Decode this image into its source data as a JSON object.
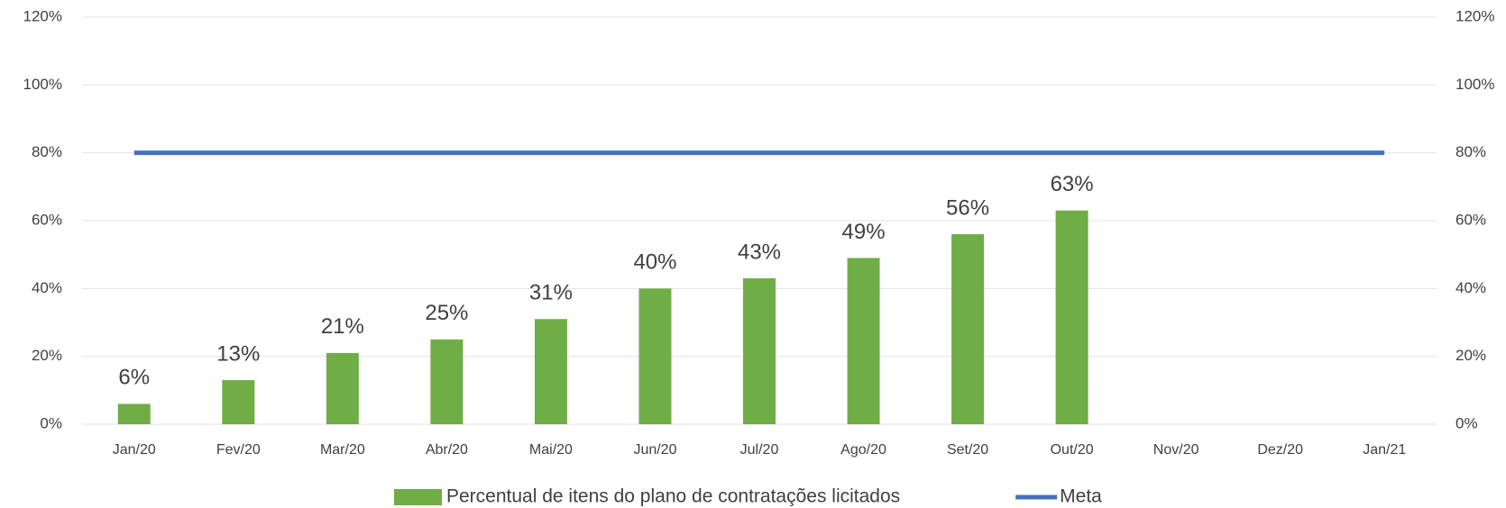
{
  "chart_data": {
    "type": "bar",
    "categories": [
      "Jan/20",
      "Fev/20",
      "Mar/20",
      "Abr/20",
      "Mai/20",
      "Jun/20",
      "Jul/20",
      "Ago/20",
      "Set/20",
      "Out/20",
      "Nov/20",
      "Dez/20",
      "Jan/21"
    ],
    "series": [
      {
        "name": "Percentual de itens do plano de contratações licitados",
        "type": "bar",
        "color": "#70ad47",
        "values": [
          6,
          13,
          21,
          25,
          31,
          40,
          43,
          49,
          56,
          63,
          null,
          null,
          null
        ],
        "value_labels": [
          "6%",
          "13%",
          "21%",
          "25%",
          "31%",
          "40%",
          "43%",
          "49%",
          "56%",
          "63%",
          null,
          null,
          null
        ]
      },
      {
        "name": "Meta",
        "type": "line",
        "color": "#4472c4",
        "axis": "y2",
        "values": [
          80,
          80,
          80,
          80,
          80,
          80,
          80,
          80,
          80,
          80,
          80,
          80,
          80
        ]
      }
    ],
    "ylim": [
      0,
      120
    ],
    "yticks": [
      {
        "value": 0,
        "label": "0%"
      },
      {
        "value": 20,
        "label": "20%"
      },
      {
        "value": 40,
        "label": "40%"
      },
      {
        "value": 60,
        "label": "60%"
      },
      {
        "value": 80,
        "label": "80%"
      },
      {
        "value": 100,
        "label": "100%"
      },
      {
        "value": 120,
        "label": "120%"
      }
    ],
    "y2lim": [
      0,
      120
    ],
    "y2ticks": [
      {
        "value": 0,
        "label": "0%"
      },
      {
        "value": 20,
        "label": "20%"
      },
      {
        "value": 40,
        "label": "40%"
      },
      {
        "value": 60,
        "label": "60%"
      },
      {
        "value": 80,
        "label": "80%"
      },
      {
        "value": 100,
        "label": "100%"
      },
      {
        "value": 120,
        "label": "120%"
      }
    ],
    "grid": true,
    "legend": "bottom"
  }
}
